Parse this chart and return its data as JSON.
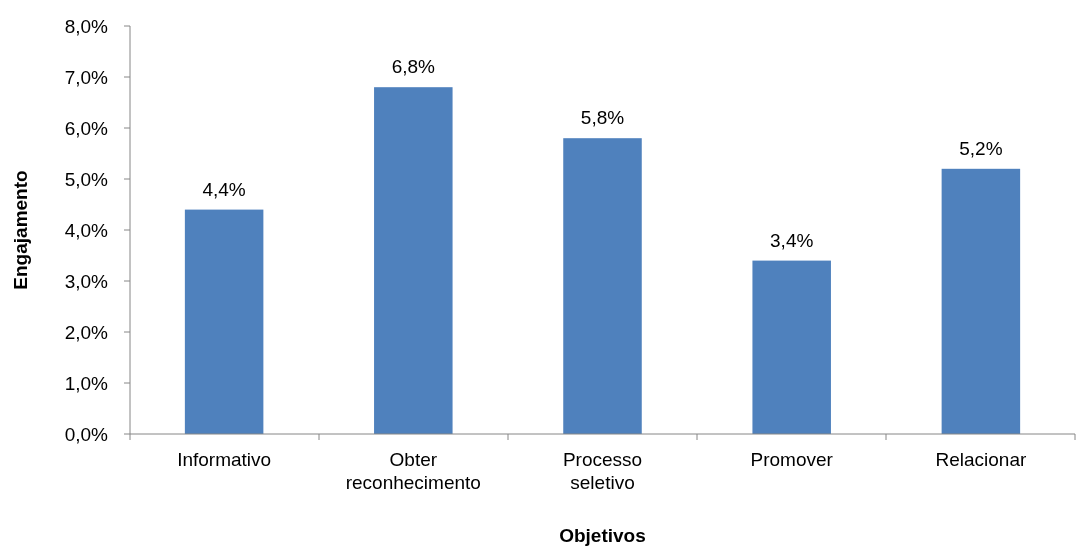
{
  "chart_data": {
    "type": "bar",
    "xlabel": "Objetivos",
    "ylabel": "Engajamento",
    "categories": [
      "Informativo",
      "Obter reconhecimento",
      "Processo seletivo",
      "Promover",
      "Relacionar"
    ],
    "values": [
      4.4,
      6.8,
      5.8,
      3.4,
      5.2
    ],
    "value_labels": [
      "4,4%",
      "6,8%",
      "5,8%",
      "3,4%",
      "5,2%"
    ],
    "color": "#4f81bd",
    "ylim": [
      0,
      8
    ],
    "yticks": [
      {
        "value": 0,
        "label": "0,0%"
      },
      {
        "value": 1,
        "label": "1,0%"
      },
      {
        "value": 2,
        "label": "2,0%"
      },
      {
        "value": 3,
        "label": "3,0%"
      },
      {
        "value": 4,
        "label": "4,0%"
      },
      {
        "value": 5,
        "label": "5,0%"
      },
      {
        "value": 6,
        "label": "6,0%"
      },
      {
        "value": 7,
        "label": "7,0%"
      },
      {
        "value": 8,
        "label": "8,0%"
      }
    ],
    "tick_labels": "xy"
  }
}
